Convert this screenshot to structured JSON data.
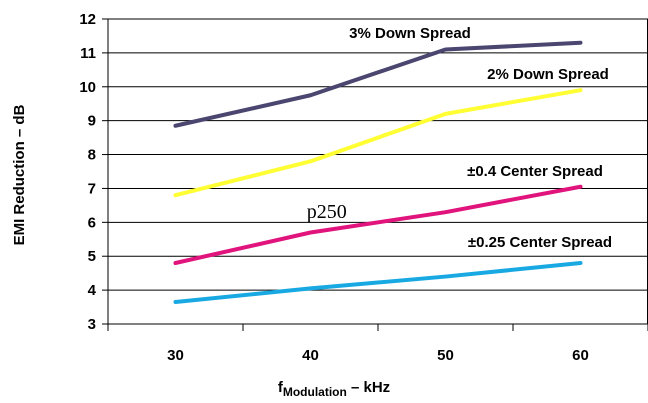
{
  "chart_data": {
    "type": "line",
    "xlabel_main": "f",
    "xlabel_sub": "Modulation",
    "xlabel_suffix": " – kHz",
    "ylabel": "EMI Reduction – dB",
    "x": [
      30,
      40,
      50,
      60
    ],
    "xticks": [
      "30",
      "40",
      "50",
      "60"
    ],
    "xlim": [
      25,
      65
    ],
    "ylim": [
      3,
      12
    ],
    "yticks": [
      "3",
      "4",
      "5",
      "6",
      "7",
      "8",
      "9",
      "10",
      "11",
      "12"
    ],
    "grid": "horizontal",
    "legend": "inline-labels",
    "series": [
      {
        "name": "3% Down Spread",
        "values": [
          8.85,
          9.75,
          11.1,
          11.3
        ],
        "color": "#4a4670"
      },
      {
        "name": "2% Down Spread",
        "values": [
          6.8,
          7.8,
          9.2,
          9.9
        ],
        "color": "#ffff33"
      },
      {
        "name": "±0.4 Center Spread",
        "values": [
          4.8,
          5.7,
          6.3,
          7.05
        ],
        "color": "#e0147c"
      },
      {
        "name": "±0.25 Center Spread",
        "values": [
          3.65,
          4.05,
          4.4,
          4.8
        ],
        "color": "#18a9e3"
      }
    ],
    "annotations": [
      {
        "text": "p250",
        "x": 41.2,
        "y": 6.3
      }
    ]
  }
}
